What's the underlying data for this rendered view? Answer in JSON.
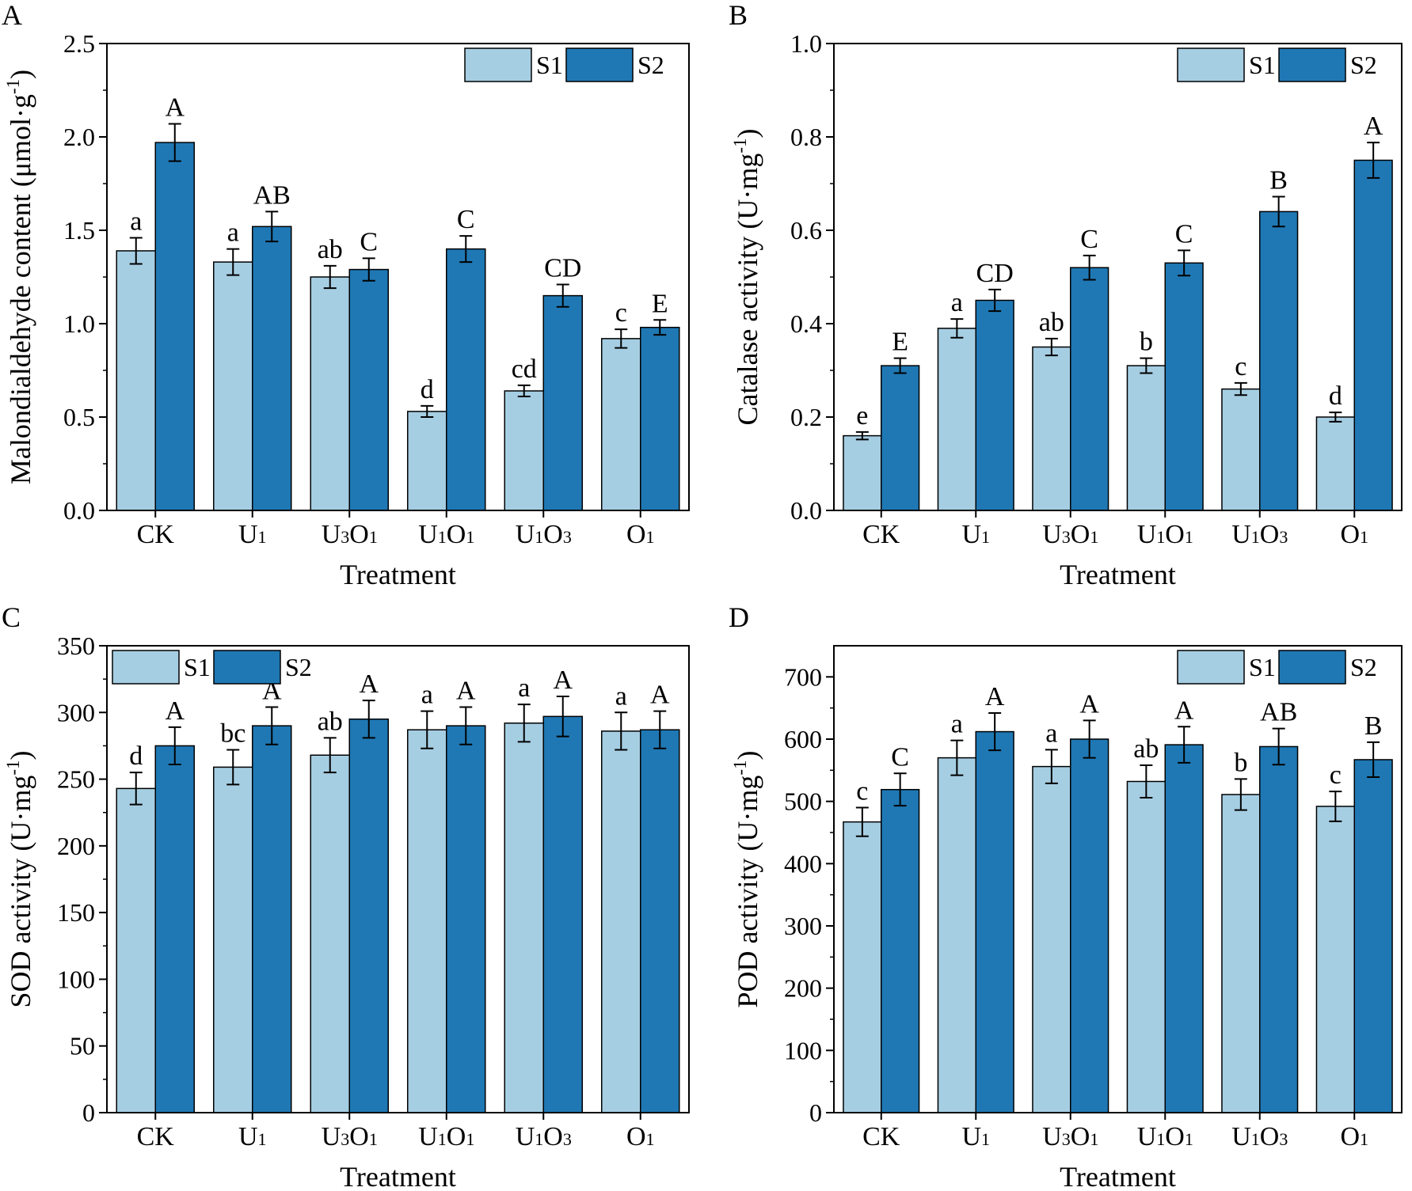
{
  "colors": {
    "s1": "#a6cee3",
    "s2": "#1f78b4",
    "axis": "#000000"
  },
  "chart_data": [
    {
      "type": "bar",
      "panel_label": "A",
      "title": "",
      "xlabel": "Treatment",
      "ylabel": "Malondialdehyde content (μmol·g",
      "ylabel_sup": "-1",
      "ylabel_end": ")",
      "ylim": [
        0,
        2.5
      ],
      "yticks": [
        "0.0",
        "0.5",
        "1.0",
        "1.5",
        "2.0",
        "2.5"
      ],
      "legend_position": "top-right",
      "categories": [
        {
          "base": "CK",
          "sub": ""
        },
        {
          "base": "U",
          "sub": "1"
        },
        {
          "base": "U",
          "sub": "3",
          "base2": "O",
          "sub2": "1"
        },
        {
          "base": "U",
          "sub": "1",
          "base2": "O",
          "sub2": "1"
        },
        {
          "base": "U",
          "sub": "1",
          "base2": "O",
          "sub2": "3"
        },
        {
          "base": "O",
          "sub": "1"
        }
      ],
      "series": [
        {
          "name": "S1",
          "values": [
            1.39,
            1.33,
            1.25,
            0.53,
            0.64,
            0.92
          ],
          "errors": [
            0.07,
            0.07,
            0.06,
            0.03,
            0.03,
            0.05
          ],
          "labels": [
            "a",
            "a",
            "ab",
            "d",
            "cd",
            "c"
          ]
        },
        {
          "name": "S2",
          "values": [
            1.97,
            1.52,
            1.29,
            1.4,
            1.15,
            0.98
          ],
          "errors": [
            0.1,
            0.08,
            0.06,
            0.07,
            0.06,
            0.04
          ],
          "labels": [
            "A",
            "AB",
            "C",
            "C",
            "CD",
            "E"
          ]
        }
      ]
    },
    {
      "type": "bar",
      "panel_label": "B",
      "title": "",
      "xlabel": "Treatment",
      "ylabel": "Catalase activity (U·mg",
      "ylabel_sup": "-1",
      "ylabel_end": ")",
      "ylim": [
        0,
        1.0
      ],
      "yticks": [
        "0.0",
        "0.2",
        "0.4",
        "0.6",
        "0.8",
        "1.0"
      ],
      "legend_position": "top-right",
      "categories": [
        {
          "base": "CK",
          "sub": ""
        },
        {
          "base": "U",
          "sub": "1"
        },
        {
          "base": "U",
          "sub": "3",
          "base2": "O",
          "sub2": "1"
        },
        {
          "base": "U",
          "sub": "1",
          "base2": "O",
          "sub2": "1"
        },
        {
          "base": "U",
          "sub": "1",
          "base2": "O",
          "sub2": "3"
        },
        {
          "base": "O",
          "sub": "1"
        }
      ],
      "series": [
        {
          "name": "S1",
          "values": [
            0.16,
            0.39,
            0.35,
            0.31,
            0.26,
            0.2
          ],
          "errors": [
            0.008,
            0.02,
            0.018,
            0.016,
            0.013,
            0.01
          ],
          "labels": [
            "e",
            "a",
            "ab",
            "b",
            "c",
            "d"
          ]
        },
        {
          "name": "S2",
          "values": [
            0.31,
            0.45,
            0.52,
            0.53,
            0.64,
            0.75
          ],
          "errors": [
            0.016,
            0.023,
            0.026,
            0.027,
            0.032,
            0.038
          ],
          "labels": [
            "E",
            "CD",
            "C",
            "C",
            "B",
            "A"
          ]
        }
      ]
    },
    {
      "type": "bar",
      "panel_label": "C",
      "title": "",
      "xlabel": "Treatment",
      "ylabel": "SOD activity (U·mg",
      "ylabel_sup": "-1",
      "ylabel_end": ")",
      "ylim": [
        0,
        350
      ],
      "yticks": [
        "0",
        "50",
        "100",
        "150",
        "200",
        "250",
        "300",
        "350"
      ],
      "legend_position": "top-left",
      "categories": [
        {
          "base": "CK",
          "sub": ""
        },
        {
          "base": "U",
          "sub": "1"
        },
        {
          "base": "U",
          "sub": "3",
          "base2": "O",
          "sub2": "1"
        },
        {
          "base": "U",
          "sub": "1",
          "base2": "O",
          "sub2": "1"
        },
        {
          "base": "U",
          "sub": "1",
          "base2": "O",
          "sub2": "3"
        },
        {
          "base": "O",
          "sub": "1"
        }
      ],
      "series": [
        {
          "name": "S1",
          "values": [
            243,
            259,
            268,
            287,
            292,
            286
          ],
          "errors": [
            12,
            13,
            13,
            14,
            14,
            14
          ],
          "labels": [
            "d",
            "bc",
            "ab",
            "a",
            "a",
            "a"
          ]
        },
        {
          "name": "S2",
          "values": [
            275,
            290,
            295,
            290,
            297,
            287
          ],
          "errors": [
            14,
            14,
            14,
            14,
            15,
            14
          ],
          "labels": [
            "A",
            "A",
            "A",
            "A",
            "A",
            "A"
          ]
        }
      ]
    },
    {
      "type": "bar",
      "panel_label": "D",
      "title": "",
      "xlabel": "Treatment",
      "ylabel": "POD activity (U·mg",
      "ylabel_sup": "-1",
      "ylabel_end": ")",
      "ylim": [
        0,
        750
      ],
      "yticks": [
        "0",
        "100",
        "200",
        "300",
        "400",
        "500",
        "600",
        "700"
      ],
      "legend_position": "top-right",
      "categories": [
        {
          "base": "CK",
          "sub": ""
        },
        {
          "base": "U",
          "sub": "1"
        },
        {
          "base": "U",
          "sub": "3",
          "base2": "O",
          "sub2": "1"
        },
        {
          "base": "U",
          "sub": "1",
          "base2": "O",
          "sub2": "1"
        },
        {
          "base": "U",
          "sub": "1",
          "base2": "O",
          "sub2": "3"
        },
        {
          "base": "O",
          "sub": "1"
        }
      ],
      "series": [
        {
          "name": "S1",
          "values": [
            467,
            570,
            556,
            532,
            511,
            492
          ],
          "errors": [
            23,
            28,
            27,
            26,
            25,
            24
          ],
          "labels": [
            "c",
            "a",
            "a",
            "ab",
            "b",
            "c"
          ]
        },
        {
          "name": "S2",
          "values": [
            519,
            612,
            600,
            591,
            588,
            567
          ],
          "errors": [
            26,
            30,
            30,
            29,
            29,
            28
          ],
          "labels": [
            "C",
            "A",
            "A",
            "A",
            "AB",
            "B"
          ]
        }
      ]
    }
  ]
}
